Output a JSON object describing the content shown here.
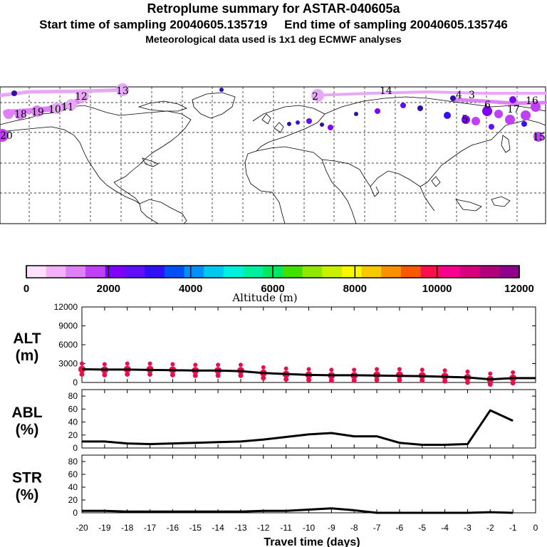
{
  "header": {
    "title": "Retroplume summary for ASTAR-040605a",
    "start_label": "Start time of sampling",
    "start_value": "20040605.135719",
    "end_label": "End time of sampling",
    "end_value": "20040605.135746",
    "met_note": "Meteorological data used is 1x1 deg ECMWF analyses"
  },
  "colors": {
    "plume_light": "#e8a8f8",
    "plume_dark": "#3010a0",
    "marker": "#e8104c",
    "line": "#000000"
  },
  "map": {
    "plume_labels": [
      "13",
      "12",
      "14",
      "11",
      "10",
      "19",
      "18",
      "20",
      "2",
      "15",
      "16",
      "17",
      "3",
      "4",
      "6",
      "5"
    ]
  },
  "colorbar": {
    "title": "Altitude (m)",
    "ticks": [
      "0",
      "2000",
      "4000",
      "6000",
      "8000",
      "10000",
      "12000"
    ],
    "colors": [
      "#fce0fc",
      "#f4b0f8",
      "#e080f8",
      "#c040f8",
      "#8000f8",
      "#6010f8",
      "#3010f8",
      "#0050f8",
      "#0090f8",
      "#00c8f0",
      "#00f0e0",
      "#00f0a0",
      "#00e860",
      "#40e000",
      "#90e800",
      "#c8f000",
      "#f8f800",
      "#f8c800",
      "#f89000",
      "#f85800",
      "#f8104c",
      "#f80090",
      "#d8007c",
      "#b0007c",
      "#90008c"
    ]
  },
  "chart_data": [
    {
      "type": "line",
      "panel": "ALT",
      "ylabel": "ALT",
      "yunit": "(m)",
      "ylim": [
        0,
        12000
      ],
      "yticks": [
        "12000",
        "9000",
        "6000",
        "3000",
        "0"
      ],
      "x": [
        0,
        -1,
        -2,
        -3,
        -4,
        -5,
        -6,
        -7,
        -8,
        -9,
        -10,
        -11,
        -12,
        -13,
        -14,
        -15,
        -16,
        -17,
        -18,
        -19,
        -20
      ],
      "values": [
        700,
        700,
        500,
        800,
        900,
        1000,
        1050,
        1100,
        1150,
        1150,
        1200,
        1350,
        1500,
        1800,
        1900,
        1900,
        1950,
        2000,
        2050,
        2050,
        2100
      ],
      "marker_x": [
        -1,
        -2,
        -3,
        -4,
        -5,
        -6,
        -7,
        -8,
        -9,
        -10,
        -11,
        -12,
        -13,
        -14,
        -15,
        -16,
        -17,
        -18,
        -19,
        -20
      ],
      "marker_values": [
        700,
        500,
        800,
        1000,
        1100,
        1200,
        1200,
        1100,
        1100,
        1200,
        1300,
        1500,
        1900,
        1900,
        1900,
        2000,
        2100,
        2100,
        2000,
        2100
      ]
    },
    {
      "type": "line",
      "panel": "ABL",
      "ylabel": "ABL",
      "yunit": "(%)",
      "ylim": [
        0,
        90
      ],
      "yticks": [
        "80",
        "60",
        "40",
        "20",
        "0"
      ],
      "x": [
        -1,
        -2,
        -3,
        -4,
        -5,
        -6,
        -7,
        -8,
        -9,
        -10,
        -11,
        -12,
        -13,
        -14,
        -15,
        -16,
        -17,
        -18,
        -19,
        -20
      ],
      "values": [
        42,
        58,
        6,
        5,
        5,
        8,
        18,
        18,
        23,
        21,
        17,
        13,
        10,
        9,
        8,
        7,
        6,
        7,
        10,
        10
      ]
    },
    {
      "type": "line",
      "panel": "STR",
      "ylabel": "STR",
      "yunit": "(%)",
      "ylim": [
        0,
        90
      ],
      "yticks": [
        "80",
        "60",
        "40",
        "20",
        "0"
      ],
      "x": [
        -1,
        -2,
        -3,
        -4,
        -5,
        -6,
        -7,
        -8,
        -9,
        -10,
        -11,
        -12,
        -13,
        -14,
        -15,
        -16,
        -17,
        -18,
        -19,
        -20
      ],
      "values": [
        0,
        1,
        0,
        0,
        0,
        0,
        0,
        4,
        7,
        5,
        3,
        3,
        2,
        2,
        2,
        2,
        2,
        2,
        3,
        3
      ]
    }
  ],
  "xaxis": {
    "ticks": [
      "-20",
      "-19",
      "-18",
      "-17",
      "-16",
      "-15",
      "-14",
      "-13",
      "-12",
      "-11",
      "-10",
      "-9",
      "-8",
      "-7",
      "-6",
      "-5",
      "-4",
      "-3",
      "-2",
      "-1",
      "0"
    ],
    "label": "Travel time (days)"
  }
}
